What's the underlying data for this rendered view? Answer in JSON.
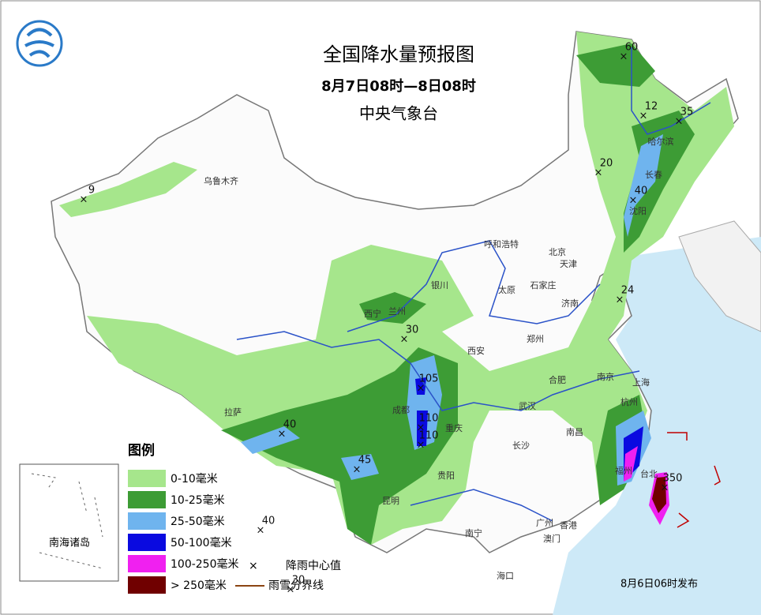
{
  "header": {
    "title": "全国降水量预报图",
    "period": "8月7日08时—8日08时",
    "issuer": "中央气象台"
  },
  "legend": {
    "title": "图例",
    "items": [
      {
        "label": "0-10毫米",
        "color": "#a6e68c"
      },
      {
        "label": "10-25毫米",
        "color": "#3d9c35"
      },
      {
        "label": "25-50毫米",
        "color": "#6fb4ee"
      },
      {
        "label": "50-100毫米",
        "color": "#0a0ae0"
      },
      {
        "label": "100-250毫米",
        "color": "#f020f0"
      },
      {
        "label": "> 250毫米",
        "color": "#700000"
      }
    ],
    "center_label": "降雨中心值",
    "snow_label": "雨雪分界线"
  },
  "inset_label": "南海诸岛",
  "cities": [
    "乌鲁木齐",
    "拉萨",
    "西宁",
    "兰州",
    "银川",
    "呼和浩特",
    "北京",
    "天津",
    "石家庄",
    "太原",
    "济南",
    "郑州",
    "西安",
    "成都",
    "重庆",
    "贵阳",
    "昆明",
    "南宁",
    "广州",
    "香港",
    "澳门",
    "海口",
    "长沙",
    "南昌",
    "武汉",
    "合肥",
    "南京",
    "上海",
    "杭州",
    "福州",
    "台北",
    "沈阳",
    "长春",
    "哈尔滨"
  ],
  "rain_centers": [
    9,
    60,
    12,
    35,
    20,
    40,
    24,
    30,
    105,
    110,
    110,
    40,
    45,
    350,
    40,
    30
  ],
  "footer": "8月6日06时发布"
}
